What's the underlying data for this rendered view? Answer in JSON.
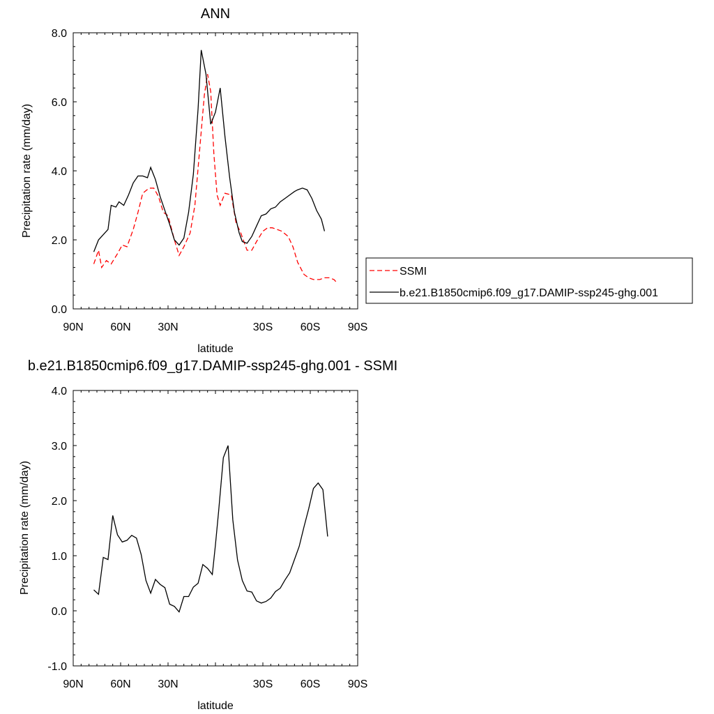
{
  "chart_data": [
    {
      "type": "line",
      "title": "ANN",
      "xlabel": "latitude",
      "ylabel": "Precipitation rate (mm/day)",
      "xlim": [
        90,
        -90
      ],
      "ylim": [
        0,
        8
      ],
      "xticks": [
        90,
        60,
        30,
        0,
        -30,
        -60,
        -90
      ],
      "xtick_labels": [
        "90N",
        "60N",
        "30N",
        "",
        "30S",
        "60S",
        "90S"
      ],
      "yticks": [
        0,
        2,
        4,
        6,
        8
      ],
      "ytick_labels": [
        "0.0",
        "2.0",
        "4.0",
        "6.0",
        "8.0"
      ],
      "grid": false,
      "legend": "right",
      "series": [
        {
          "name": "SSMI",
          "color": "#ff0000",
          "dash": true,
          "x": [
            77,
            74,
            72,
            69,
            66,
            62,
            59,
            56,
            52,
            49,
            46,
            42,
            39,
            36,
            33,
            30,
            26,
            23,
            20,
            16,
            13,
            10,
            7,
            5,
            3,
            1,
            -1,
            -3,
            -6,
            -10,
            -13,
            -16,
            -20,
            -23,
            -26,
            -30,
            -33,
            -36,
            -39,
            -42,
            -46,
            -49,
            -52,
            -56,
            -59,
            -62,
            -66,
            -69,
            -72,
            -75,
            -77
          ],
          "y": [
            1.3,
            1.7,
            1.2,
            1.4,
            1.3,
            1.6,
            1.85,
            1.8,
            2.3,
            2.8,
            3.35,
            3.5,
            3.5,
            3.25,
            2.8,
            2.7,
            2.0,
            1.55,
            1.8,
            2.2,
            3.0,
            4.6,
            6.2,
            6.8,
            6.3,
            4.5,
            3.3,
            3.0,
            3.35,
            3.3,
            2.5,
            2.2,
            1.7,
            1.7,
            1.95,
            2.25,
            2.35,
            2.35,
            2.3,
            2.25,
            2.1,
            1.8,
            1.35,
            1.0,
            0.9,
            0.85,
            0.85,
            0.9,
            0.9,
            0.85,
            0.75
          ]
        },
        {
          "name": "b.e21.B1850cmip6.f09_g17.DAMIP-ssp245-ghg.001",
          "color": "#000000",
          "dash": false,
          "x": [
            77,
            74,
            71,
            68,
            66,
            63,
            61,
            58,
            55,
            52,
            49,
            46,
            43,
            41,
            38,
            35,
            32,
            29,
            26,
            23,
            20,
            17,
            14,
            11,
            9,
            6,
            3,
            0,
            -3,
            -6,
            -9,
            -12,
            -15,
            -17,
            -20,
            -23,
            -26,
            -29,
            -32,
            -35,
            -38,
            -41,
            -44,
            -47,
            -50,
            -52,
            -55,
            -58,
            -61,
            -64,
            -67,
            -69
          ],
          "y": [
            1.65,
            2.0,
            2.15,
            2.3,
            3.0,
            2.95,
            3.1,
            3.0,
            3.3,
            3.65,
            3.85,
            3.85,
            3.8,
            4.1,
            3.75,
            3.25,
            2.85,
            2.45,
            2.0,
            1.85,
            2.05,
            2.8,
            3.9,
            5.8,
            7.5,
            6.8,
            5.35,
            5.7,
            6.4,
            5.0,
            3.8,
            2.8,
            2.2,
            1.95,
            1.9,
            2.1,
            2.4,
            2.7,
            2.75,
            2.9,
            2.95,
            3.1,
            3.2,
            3.3,
            3.4,
            3.45,
            3.5,
            3.45,
            3.2,
            2.85,
            2.6,
            2.25
          ]
        }
      ]
    },
    {
      "type": "line",
      "title": "b.e21.B1850cmip6.f09_g17.DAMIP-ssp245-ghg.001 - SSMI",
      "xlabel": "latitude",
      "ylabel": "Precipitation rate (mm/day)",
      "xlim": [
        90,
        -90
      ],
      "ylim": [
        -1,
        4
      ],
      "xticks": [
        90,
        60,
        30,
        0,
        -30,
        -60,
        -90
      ],
      "xtick_labels": [
        "90N",
        "60N",
        "30N",
        "",
        "30S",
        "60S",
        "90S"
      ],
      "yticks": [
        -1,
        0,
        1,
        2,
        3,
        4
      ],
      "ytick_labels": [
        "-1.0",
        "0.0",
        "1.0",
        "2.0",
        "3.0",
        "4.0"
      ],
      "grid": false,
      "series": [
        {
          "color": "#000000",
          "x": [
            77,
            74,
            71,
            68,
            65,
            62,
            59,
            56,
            53,
            50,
            47,
            44,
            41,
            38,
            35,
            32,
            29,
            26,
            23,
            20,
            17,
            14,
            11,
            8,
            5,
            2,
            0,
            -2,
            -5,
            -8,
            -11,
            -14,
            -17,
            -20,
            -23,
            -26,
            -29,
            -32,
            -35,
            -38,
            -41,
            -44,
            -47,
            -50,
            -53,
            -56,
            -59,
            -62,
            -65,
            -68,
            -71
          ],
          "y": [
            0.38,
            0.3,
            0.97,
            0.93,
            1.73,
            1.38,
            1.25,
            1.28,
            1.37,
            1.32,
            1.02,
            0.55,
            0.32,
            0.57,
            0.48,
            0.42,
            0.12,
            0.08,
            -0.02,
            0.26,
            0.26,
            0.43,
            0.5,
            0.84,
            0.77,
            0.66,
            1.2,
            1.8,
            2.78,
            3.0,
            1.65,
            0.92,
            0.55,
            0.36,
            0.34,
            0.18,
            0.14,
            0.17,
            0.23,
            0.35,
            0.41,
            0.56,
            0.69,
            0.93,
            1.17,
            1.52,
            1.85,
            2.22,
            2.32,
            2.2,
            1.35
          ]
        }
      ]
    }
  ]
}
